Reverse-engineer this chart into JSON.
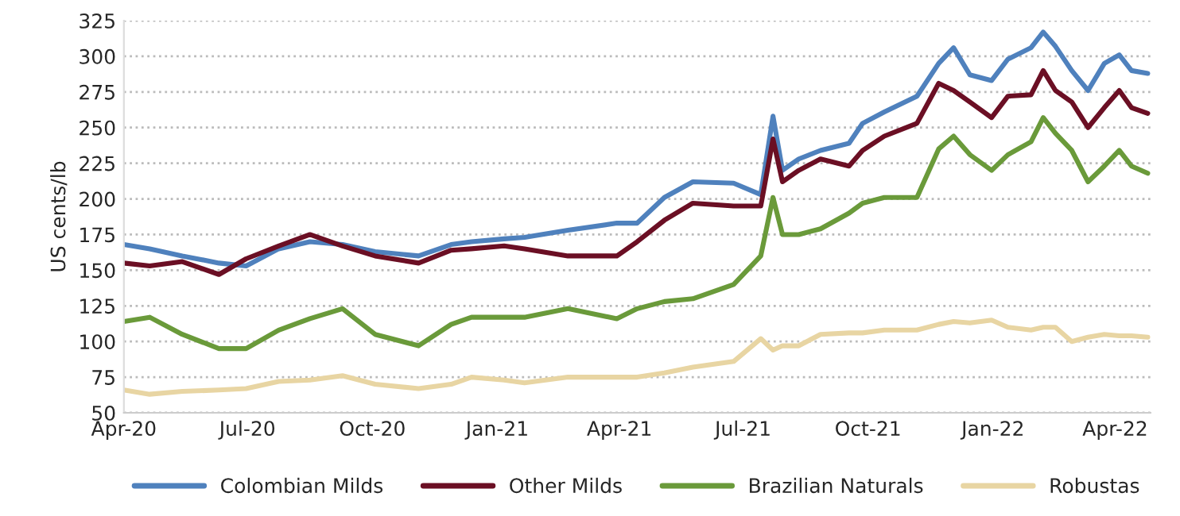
{
  "chart_data": {
    "type": "line",
    "ylabel": "US cents/lb",
    "x": [
      "2020-04-01",
      "2020-04-20",
      "2020-05-14",
      "2020-06-10",
      "2020-06-30",
      "2020-07-24",
      "2020-08-16",
      "2020-09-09",
      "2020-10-03",
      "2020-11-04",
      "2020-11-28",
      "2020-12-13",
      "2021-01-06",
      "2021-01-21",
      "2021-02-22",
      "2021-03-30",
      "2021-04-14",
      "2021-05-04",
      "2021-05-25",
      "2021-06-24",
      "2021-07-14",
      "2021-07-23",
      "2021-07-30",
      "2021-08-11",
      "2021-08-27",
      "2021-09-17",
      "2021-09-27",
      "2021-10-13",
      "2021-11-06",
      "2021-11-22",
      "2021-12-03",
      "2021-12-15",
      "2021-12-31",
      "2022-01-12",
      "2022-01-29",
      "2022-02-07",
      "2022-02-16",
      "2022-02-28",
      "2022-03-12",
      "2022-03-24",
      "2022-04-04",
      "2022-04-13",
      "2022-04-25"
    ],
    "series": [
      {
        "name": "Colombian Milds",
        "color": "#4f81bd",
        "values": [
          168,
          165,
          160,
          155,
          153,
          165,
          170,
          168,
          163,
          160,
          168,
          170,
          172,
          173,
          178,
          183,
          183,
          201,
          212,
          211,
          203,
          258,
          220,
          228,
          234,
          239,
          253,
          261,
          272,
          295,
          306,
          287,
          283,
          298,
          306,
          317,
          307,
          290,
          276,
          295,
          301,
          290,
          288
        ]
      },
      {
        "name": "Other Milds",
        "color": "#6b0f24",
        "values": [
          155,
          153,
          156,
          147,
          158,
          167,
          175,
          167,
          160,
          155,
          164,
          165,
          167,
          165,
          160,
          160,
          170,
          185,
          197,
          195,
          195,
          242,
          212,
          220,
          228,
          223,
          234,
          244,
          253,
          281,
          276,
          268,
          257,
          272,
          273,
          290,
          276,
          268,
          250,
          264,
          276,
          264,
          260
        ]
      },
      {
        "name": "Brazilian Naturals",
        "color": "#6a9a3a",
        "values": [
          114,
          117,
          105,
          95,
          95,
          108,
          116,
          123,
          105,
          97,
          112,
          117,
          117,
          117,
          123,
          116,
          123,
          128,
          130,
          140,
          160,
          201,
          175,
          175,
          179,
          190,
          197,
          201,
          201,
          235,
          244,
          231,
          220,
          231,
          240,
          257,
          246,
          234,
          212,
          223,
          234,
          223,
          218
        ]
      },
      {
        "name": "Robustas",
        "color": "#e8d5a3",
        "values": [
          66,
          63,
          65,
          66,
          67,
          72,
          73,
          76,
          70,
          67,
          70,
          75,
          73,
          71,
          75,
          75,
          75,
          78,
          82,
          86,
          102,
          94,
          97,
          97,
          105,
          106,
          106,
          108,
          108,
          112,
          114,
          113,
          115,
          110,
          108,
          110,
          110,
          100,
          103,
          105,
          104,
          104,
          103
        ]
      }
    ],
    "xlim": [
      "2020-04-01",
      "2022-04-27"
    ],
    "xticks": [
      {
        "value": "2020-04-01",
        "label": "Apr-20"
      },
      {
        "value": "2020-07-01",
        "label": "Jul-20"
      },
      {
        "value": "2020-10-01",
        "label": "Oct-20"
      },
      {
        "value": "2021-01-01",
        "label": "Jan-21"
      },
      {
        "value": "2021-04-01",
        "label": "Apr-21"
      },
      {
        "value": "2021-07-01",
        "label": "Jul-21"
      },
      {
        "value": "2021-10-01",
        "label": "Oct-21"
      },
      {
        "value": "2022-01-01",
        "label": "Jan-22"
      },
      {
        "value": "2022-04-01",
        "label": "Apr-22"
      }
    ],
    "ylim": [
      50,
      325
    ],
    "yticks": [
      50,
      75,
      100,
      125,
      150,
      175,
      200,
      225,
      250,
      275,
      300,
      325
    ],
    "grid": "y",
    "legend": "bottom",
    "line_style": "solid",
    "marker": "none"
  }
}
